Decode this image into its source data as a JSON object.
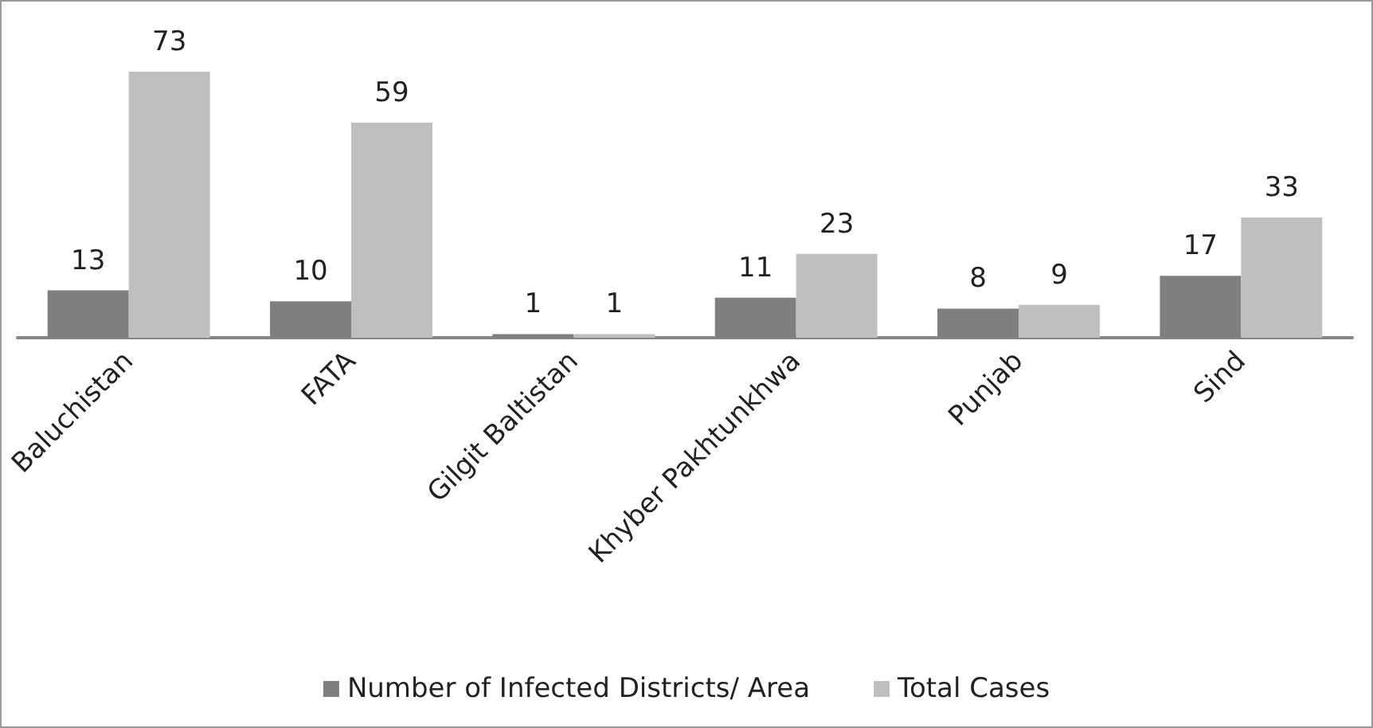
{
  "chart_data": {
    "type": "bar",
    "categories": [
      "Baluchistan",
      "FATA",
      "Gilgit Baltistan",
      "Khyber Pakhtunkhwa",
      "Punjab",
      "Sind"
    ],
    "series": [
      {
        "name": "Number of Infected Districts/ Area",
        "color": "#7f7f7f",
        "values": [
          13,
          10,
          1,
          11,
          8,
          17
        ]
      },
      {
        "name": "Total Cases",
        "color": "#bfbfbf",
        "values": [
          73,
          59,
          1,
          23,
          9,
          33
        ]
      }
    ],
    "data_labels": true,
    "legend": "bottom"
  }
}
